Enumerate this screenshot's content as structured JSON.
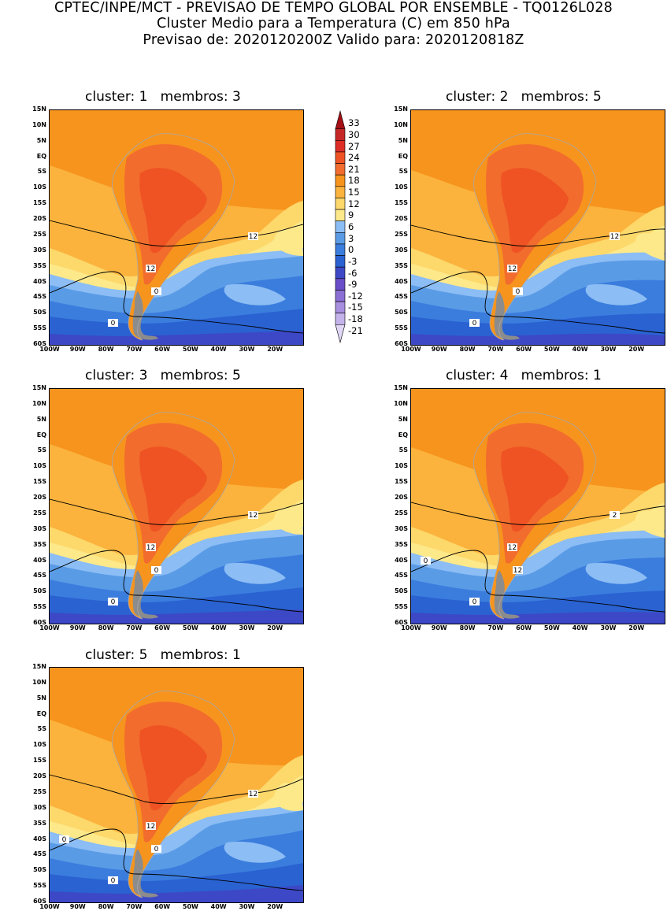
{
  "header": {
    "line1": "CPTEC/INPE/MCT - PREVISAO DE TEMPO GLOBAL POR ENSEMBLE - TQ0126L028",
    "line2": "Cluster Medio para a Temperatura (C) em 850 hPa",
    "line3": "Previsao de: 2020120200Z   Valido para: 2020120818Z"
  },
  "palette": {
    "33": "#a50f15",
    "30": "#c62828",
    "27": "#de2d26",
    "24": "#ef5323",
    "21": "#f26c2d",
    "18": "#f7941d",
    "15": "#fbb33d",
    "12": "#fdd86b",
    "9": "#fde98a",
    "6": "#8cbdf4",
    "3": "#5a9be6",
    "0": "#3b7ddd",
    "-3": "#2a62d2",
    "-6": "#3d48c6",
    "-9": "#6a4dc8",
    "-12": "#8b6fd4",
    "-15": "#a98fdf",
    "-18": "#c4b3ea",
    "-21": "#e0d6f5",
    "land_outline": "#a9a9a9",
    "contour": "#000000"
  },
  "chart_data": [
    {
      "type": "heatmap",
      "title": "cluster: 1   membros: 3",
      "cluster": 1,
      "membros": 3,
      "x_ticks": [
        "100W",
        "90W",
        "80W",
        "70W",
        "60W",
        "50W",
        "40W",
        "30W",
        "20W"
      ],
      "y_ticks": [
        "15N",
        "10N",
        "5N",
        "EQ",
        "5S",
        "10S",
        "15S",
        "20S",
        "25S",
        "30S",
        "35S",
        "40S",
        "45S",
        "50S",
        "55S",
        "60S"
      ],
      "xlim": [
        -100,
        -10
      ],
      "ylim": [
        -60,
        15
      ],
      "contour_labels": [
        "12",
        "12",
        "0",
        "0"
      ]
    },
    {
      "type": "heatmap",
      "title": "cluster: 2   membros: 5",
      "cluster": 2,
      "membros": 5,
      "x_ticks": [
        "100W",
        "90W",
        "80W",
        "70W",
        "60W",
        "50W",
        "40W",
        "30W",
        "20W"
      ],
      "y_ticks": [
        "15N",
        "10N",
        "5N",
        "EQ",
        "5S",
        "10S",
        "15S",
        "20S",
        "25S",
        "30S",
        "35S",
        "40S",
        "45S",
        "50S",
        "55S",
        "60S"
      ],
      "xlim": [
        -100,
        -10
      ],
      "ylim": [
        -60,
        15
      ],
      "contour_labels": [
        "12",
        "12",
        "0",
        "0"
      ]
    },
    {
      "type": "heatmap",
      "title": "cluster: 3   membros: 5",
      "cluster": 3,
      "membros": 5,
      "x_ticks": [
        "100W",
        "90W",
        "80W",
        "70W",
        "60W",
        "50W",
        "40W",
        "30W",
        "20W"
      ],
      "y_ticks": [
        "15N",
        "10N",
        "5N",
        "EQ",
        "5S",
        "10S",
        "15S",
        "20S",
        "25S",
        "30S",
        "35S",
        "40S",
        "45S",
        "50S",
        "55S",
        "60S"
      ],
      "xlim": [
        -100,
        -10
      ],
      "ylim": [
        -60,
        15
      ],
      "contour_labels": [
        "12",
        "12",
        "0",
        "0"
      ]
    },
    {
      "type": "heatmap",
      "title": "cluster: 4   membros: 1",
      "cluster": 4,
      "membros": 1,
      "x_ticks": [
        "100W",
        "90W",
        "80W",
        "70W",
        "60W",
        "50W",
        "40W",
        "30W",
        "20W"
      ],
      "y_ticks": [
        "15N",
        "10N",
        "5N",
        "EQ",
        "5S",
        "10S",
        "15S",
        "20S",
        "25S",
        "30S",
        "35S",
        "40S",
        "45S",
        "50S",
        "55S",
        "60S"
      ],
      "xlim": [
        -100,
        -10
      ],
      "ylim": [
        -60,
        15
      ],
      "contour_labels": [
        "2",
        "12",
        "12",
        "0",
        "0"
      ]
    },
    {
      "type": "heatmap",
      "title": "cluster: 5   membros: 1",
      "cluster": 5,
      "membros": 1,
      "x_ticks": [
        "100W",
        "90W",
        "80W",
        "70W",
        "60W",
        "50W",
        "40W",
        "30W",
        "20W"
      ],
      "y_ticks": [
        "15N",
        "10N",
        "5N",
        "EQ",
        "5S",
        "10S",
        "15S",
        "20S",
        "25S",
        "30S",
        "35S",
        "40S",
        "45S",
        "50S",
        "55S",
        "60S"
      ],
      "xlim": [
        -100,
        -10
      ],
      "ylim": [
        -60,
        15
      ],
      "contour_labels": [
        "12",
        "12",
        "0",
        "0",
        "0"
      ]
    }
  ],
  "colorbar": {
    "levels": [
      "33",
      "30",
      "27",
      "24",
      "21",
      "18",
      "15",
      "12",
      "9",
      "6",
      "3",
      "0",
      "-3",
      "-6",
      "-9",
      "-12",
      "-15",
      "-18",
      "-21"
    ],
    "colors": [
      "#a50f15",
      "#c62828",
      "#de2d26",
      "#ef5323",
      "#f26c2d",
      "#f7941d",
      "#fbb33d",
      "#fdd86b",
      "#fde98a",
      "#8cbdf4",
      "#5a9be6",
      "#3b7ddd",
      "#2a62d2",
      "#3d48c6",
      "#6a4dc8",
      "#8b6fd4",
      "#a98fdf",
      "#c4b3ea",
      "#e0d6f5"
    ]
  }
}
